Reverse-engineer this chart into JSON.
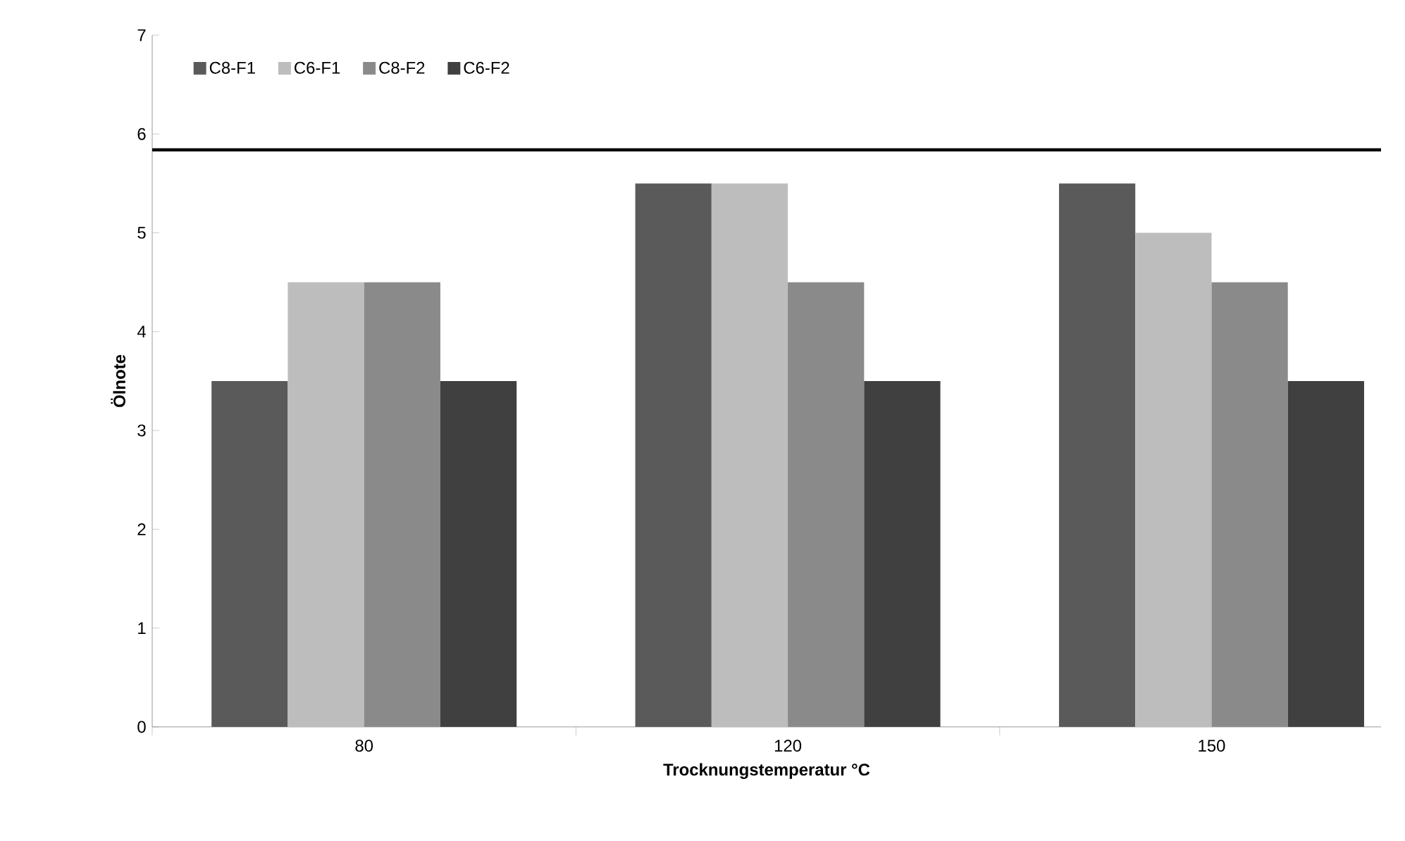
{
  "chart_data": {
    "type": "bar",
    "xlabel": "Trocknungstemperatur °C",
    "ylabel": "Ölnote",
    "categories": [
      "80",
      "120",
      "150"
    ],
    "series": [
      {
        "name": "C8-F1",
        "color": "#5a5a5a",
        "values": [
          3.5,
          5.5,
          5.5
        ]
      },
      {
        "name": "C6-F1",
        "color": "#bdbdbd",
        "values": [
          4.5,
          5.5,
          5.0
        ]
      },
      {
        "name": "C8-F2",
        "color": "#8a8a8a",
        "values": [
          4.5,
          4.5,
          4.5
        ]
      },
      {
        "name": "C6-F2",
        "color": "#404040",
        "values": [
          3.5,
          3.5,
          3.5
        ]
      }
    ],
    "ylim": [
      0,
      7
    ],
    "yticks": [
      0,
      1,
      2,
      3,
      4,
      5,
      6,
      7
    ],
    "grid": false,
    "legend": "top left",
    "ref_lines": [
      {
        "axis": "y",
        "value": 5.84,
        "color": "#000000"
      }
    ]
  }
}
